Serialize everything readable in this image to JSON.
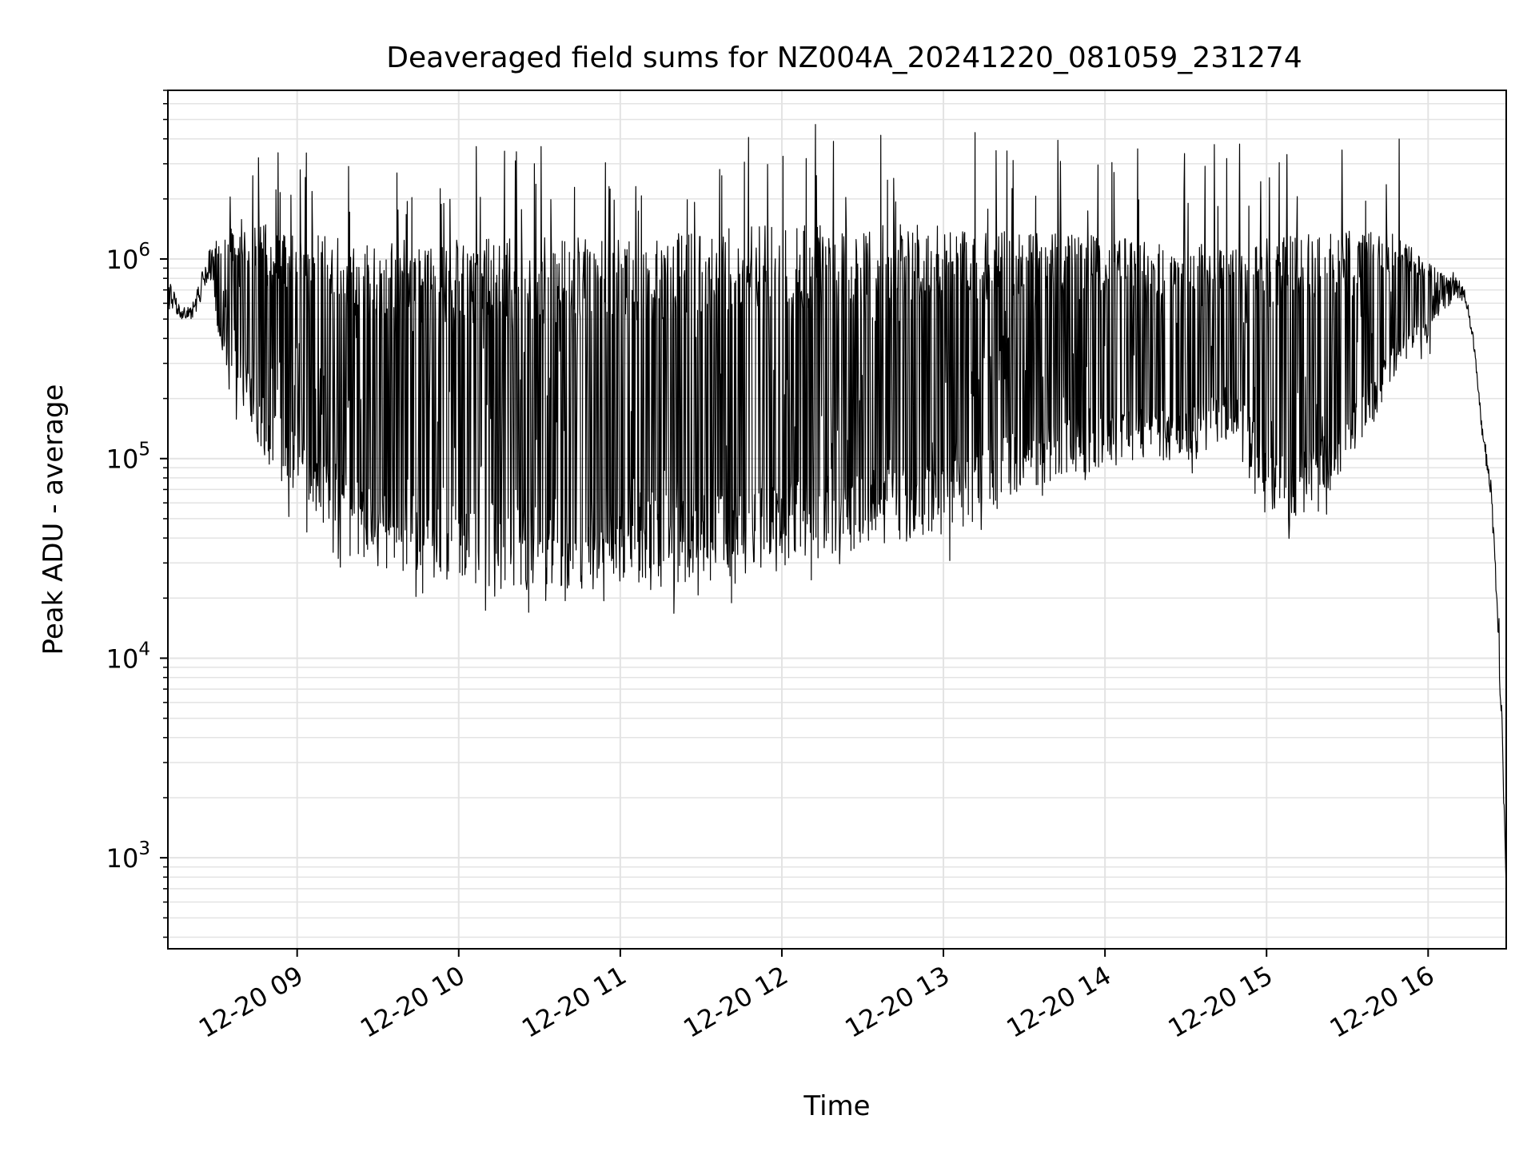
{
  "chart_data": {
    "type": "line",
    "title": "Deaveraged field sums for NZ004A_20241220_081059_231274",
    "xlabel": "Time",
    "ylabel": "Peak ADU - average",
    "yscale": "log",
    "ylim": [
      350,
      7000000
    ],
    "xlim": [
      "2024-12-20 08:12",
      "2024-12-20 16:29"
    ],
    "grid": true,
    "line_color": "#000000",
    "x_ticks": [
      {
        "value": "2024-12-20 09:00",
        "label": "12-20 09"
      },
      {
        "value": "2024-12-20 10:00",
        "label": "12-20 10"
      },
      {
        "value": "2024-12-20 11:00",
        "label": "12-20 11"
      },
      {
        "value": "2024-12-20 12:00",
        "label": "12-20 12"
      },
      {
        "value": "2024-12-20 13:00",
        "label": "12-20 13"
      },
      {
        "value": "2024-12-20 14:00",
        "label": "12-20 14"
      },
      {
        "value": "2024-12-20 15:00",
        "label": "12-20 15"
      },
      {
        "value": "2024-12-20 16:00",
        "label": "12-20 16"
      }
    ],
    "y_ticks": [
      {
        "value": 1000,
        "base": "10",
        "exp": "3"
      },
      {
        "value": 10000,
        "base": "10",
        "exp": "4"
      },
      {
        "value": 100000,
        "base": "10",
        "exp": "5"
      },
      {
        "value": 1000000,
        "base": "10",
        "exp": "6"
      }
    ],
    "series": [
      {
        "style": "dense-oscillating",
        "x": [
          "2024-12-20 08:12",
          "2024-12-20 08:17",
          "2024-12-20 08:22",
          "2024-12-20 08:27",
          "2024-12-20 08:31",
          "2024-12-20 08:35",
          "2024-12-20 08:40",
          "2024-12-20 08:45",
          "2024-12-20 08:50",
          "2024-12-20 09:00",
          "2024-12-20 09:15",
          "2024-12-20 09:30",
          "2024-12-20 09:45",
          "2024-12-20 10:00",
          "2024-12-20 10:30",
          "2024-12-20 11:00",
          "2024-12-20 11:30",
          "2024-12-20 12:00",
          "2024-12-20 12:30",
          "2024-12-20 13:00",
          "2024-12-20 13:15",
          "2024-12-20 13:30",
          "2024-12-20 14:00",
          "2024-12-20 14:30",
          "2024-12-20 14:50",
          "2024-12-20 15:00",
          "2024-12-20 15:10",
          "2024-12-20 15:20",
          "2024-12-20 15:40",
          "2024-12-20 15:50",
          "2024-12-20 16:00",
          "2024-12-20 16:05",
          "2024-12-20 16:10",
          "2024-12-20 16:14",
          "2024-12-20 16:17",
          "2024-12-20 16:20",
          "2024-12-20 16:23",
          "2024-12-20 16:25",
          "2024-12-20 16:27",
          "2024-12-20 16:29"
        ],
        "upper": [
          900000,
          550000,
          650000,
          1100000,
          1300000,
          1500000,
          1600000,
          1600000,
          1500000,
          1400000,
          1300000,
          1250000,
          1250000,
          1250000,
          1300000,
          1300000,
          1400000,
          1500000,
          1500000,
          1500000,
          1400000,
          1400000,
          1300000,
          1200000,
          1200000,
          1300000,
          1400000,
          1400000,
          1400000,
          1300000,
          1000000,
          900000,
          850000,
          700000,
          400000,
          150000,
          90000,
          40000,
          10000,
          700
        ],
        "lower": [
          550000,
          500000,
          500000,
          800000,
          400000,
          250000,
          180000,
          120000,
          90000,
          60000,
          40000,
          28000,
          24000,
          22000,
          22000,
          22000,
          23000,
          28000,
          35000,
          40000,
          50000,
          70000,
          90000,
          100000,
          130000,
          50000,
          45000,
          55000,
          150000,
          300000,
          400000,
          500000,
          650000,
          600000,
          350000,
          130000,
          60000,
          25000,
          5000,
          700
        ]
      }
    ]
  }
}
